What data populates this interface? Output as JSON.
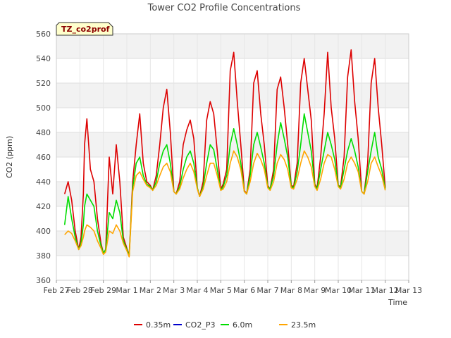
{
  "chart_data": {
    "type": "line",
    "title": "Tower CO2 Profile Concentrations",
    "xlabel": "Time",
    "ylabel": "CO2 (ppm)",
    "tag_label": "TZ_co2prof",
    "ylim": [
      360,
      560
    ],
    "yticks": [
      360,
      380,
      400,
      420,
      440,
      460,
      480,
      500,
      520,
      540,
      560
    ],
    "xlim": [
      0,
      15
    ],
    "xtick_labels": [
      "Feb 27",
      "Feb 28",
      "Feb 29",
      "Mar 1",
      "Mar 2",
      "Mar 3",
      "Mar 4",
      "Mar 5",
      "Mar 6",
      "Mar 7",
      "Mar 8",
      "Mar 9",
      "Mar 10",
      "Mar 11",
      "Mar 12",
      "Mar 13"
    ],
    "x_units": "days since Feb 27",
    "series": [
      {
        "name": "0.35m",
        "color": "#dd0000",
        "x": [
          0.35,
          0.5,
          0.65,
          0.8,
          0.95,
          1.05,
          1.15,
          1.2,
          1.3,
          1.45,
          1.6,
          1.75,
          1.9,
          2.0,
          2.1,
          2.25,
          2.4,
          2.55,
          2.7,
          2.85,
          3.0,
          3.1,
          3.25,
          3.4,
          3.55,
          3.7,
          3.85,
          4.0,
          4.1,
          4.25,
          4.4,
          4.55,
          4.7,
          4.85,
          5.0,
          5.1,
          5.25,
          5.4,
          5.55,
          5.7,
          5.85,
          6.0,
          6.1,
          6.25,
          6.4,
          6.55,
          6.7,
          6.85,
          7.0,
          7.1,
          7.25,
          7.4,
          7.55,
          7.7,
          7.85,
          8.0,
          8.1,
          8.25,
          8.4,
          8.55,
          8.7,
          8.85,
          9.0,
          9.1,
          9.25,
          9.4,
          9.55,
          9.7,
          9.85,
          10.0,
          10.1,
          10.25,
          10.4,
          10.55,
          10.7,
          10.85,
          11.0,
          11.1,
          11.25,
          11.4,
          11.55,
          11.7,
          11.85,
          12.0,
          12.1,
          12.25,
          12.4,
          12.55,
          12.7,
          12.85,
          13.0,
          13.1,
          13.25,
          13.4,
          13.55,
          13.7,
          13.85,
          14.0
        ],
        "y": [
          430,
          440,
          425,
          400,
          385,
          395,
          430,
          470,
          491,
          450,
          440,
          410,
          390,
          382,
          385,
          460,
          430,
          470,
          440,
          395,
          386,
          380,
          440,
          470,
          495,
          455,
          440,
          437,
          433,
          445,
          470,
          500,
          515,
          480,
          432,
          430,
          440,
          470,
          482,
          490,
          475,
          435,
          428,
          440,
          490,
          505,
          495,
          465,
          434,
          438,
          450,
          530,
          545,
          505,
          470,
          433,
          430,
          450,
          520,
          530,
          495,
          470,
          437,
          434,
          450,
          515,
          525,
          500,
          470,
          437,
          436,
          455,
          520,
          540,
          515,
          490,
          438,
          435,
          460,
          495,
          545,
          500,
          475,
          437,
          436,
          460,
          525,
          547,
          505,
          475,
          432,
          430,
          455,
          520,
          540,
          500,
          470,
          435
        ]
      },
      {
        "name": "CO2_P3",
        "color": "#0000cc",
        "x": [],
        "y": []
      },
      {
        "name": "6.0m",
        "color": "#00dd00",
        "x": [
          0.35,
          0.5,
          0.65,
          0.8,
          0.95,
          1.05,
          1.15,
          1.2,
          1.3,
          1.45,
          1.6,
          1.75,
          1.9,
          2.0,
          2.1,
          2.25,
          2.4,
          2.55,
          2.7,
          2.85,
          3.0,
          3.1,
          3.25,
          3.4,
          3.55,
          3.7,
          3.85,
          4.0,
          4.1,
          4.25,
          4.4,
          4.55,
          4.7,
          4.85,
          5.0,
          5.1,
          5.25,
          5.4,
          5.55,
          5.7,
          5.85,
          6.0,
          6.1,
          6.25,
          6.4,
          6.55,
          6.7,
          6.85,
          7.0,
          7.1,
          7.25,
          7.4,
          7.55,
          7.7,
          7.85,
          8.0,
          8.1,
          8.25,
          8.4,
          8.55,
          8.7,
          8.85,
          9.0,
          9.1,
          9.25,
          9.4,
          9.55,
          9.7,
          9.85,
          10.0,
          10.1,
          10.25,
          10.4,
          10.55,
          10.7,
          10.85,
          11.0,
          11.1,
          11.25,
          11.4,
          11.55,
          11.7,
          11.85,
          12.0,
          12.1,
          12.25,
          12.4,
          12.55,
          12.7,
          12.85,
          13.0,
          13.1,
          13.25,
          13.4,
          13.55,
          13.7,
          13.85,
          14.0
        ],
        "y": [
          405,
          428,
          410,
          395,
          385,
          390,
          405,
          420,
          430,
          425,
          420,
          400,
          388,
          382,
          385,
          415,
          410,
          425,
          415,
          392,
          385,
          380,
          435,
          455,
          460,
          445,
          438,
          436,
          433,
          440,
          455,
          465,
          470,
          455,
          432,
          430,
          436,
          450,
          460,
          465,
          455,
          435,
          428,
          436,
          455,
          470,
          466,
          450,
          433,
          436,
          445,
          470,
          483,
          470,
          455,
          432,
          430,
          445,
          470,
          480,
          468,
          455,
          436,
          434,
          445,
          470,
          488,
          475,
          460,
          436,
          435,
          448,
          470,
          495,
          480,
          465,
          437,
          434,
          450,
          465,
          480,
          470,
          458,
          437,
          435,
          450,
          465,
          475,
          465,
          452,
          432,
          430,
          448,
          465,
          480,
          460,
          450,
          434
        ]
      },
      {
        "name": "23.5m",
        "color": "#ffa500",
        "x": [
          0.35,
          0.5,
          0.65,
          0.8,
          0.95,
          1.05,
          1.15,
          1.2,
          1.3,
          1.45,
          1.6,
          1.75,
          1.9,
          2.0,
          2.1,
          2.25,
          2.4,
          2.55,
          2.7,
          2.85,
          3.0,
          3.1,
          3.25,
          3.4,
          3.55,
          3.7,
          3.85,
          4.0,
          4.1,
          4.25,
          4.4,
          4.55,
          4.7,
          4.85,
          5.0,
          5.1,
          5.25,
          5.4,
          5.55,
          5.7,
          5.85,
          6.0,
          6.1,
          6.25,
          6.4,
          6.55,
          6.7,
          6.85,
          7.0,
          7.1,
          7.25,
          7.4,
          7.55,
          7.7,
          7.85,
          8.0,
          8.1,
          8.25,
          8.4,
          8.55,
          8.7,
          8.85,
          9.0,
          9.1,
          9.25,
          9.4,
          9.55,
          9.7,
          9.85,
          10.0,
          10.1,
          10.25,
          10.4,
          10.55,
          10.7,
          10.85,
          11.0,
          11.1,
          11.25,
          11.4,
          11.55,
          11.7,
          11.85,
          12.0,
          12.1,
          12.25,
          12.4,
          12.55,
          12.7,
          12.85,
          13.0,
          13.1,
          13.25,
          13.4,
          13.55,
          13.7,
          13.85,
          14.0
        ],
        "y": [
          397,
          400,
          398,
          392,
          385,
          388,
          395,
          400,
          405,
          403,
          400,
          392,
          386,
          381,
          383,
          400,
          398,
          405,
          400,
          390,
          384,
          379,
          432,
          445,
          448,
          442,
          437,
          435,
          433,
          437,
          445,
          452,
          455,
          448,
          432,
          430,
          434,
          443,
          450,
          455,
          448,
          434,
          428,
          434,
          445,
          455,
          455,
          445,
          433,
          434,
          440,
          455,
          465,
          460,
          450,
          432,
          430,
          440,
          455,
          463,
          458,
          450,
          435,
          433,
          440,
          455,
          462,
          458,
          450,
          435,
          434,
          442,
          455,
          465,
          460,
          452,
          436,
          433,
          442,
          455,
          462,
          460,
          450,
          436,
          434,
          442,
          455,
          460,
          455,
          448,
          432,
          430,
          440,
          455,
          460,
          452,
          445,
          433
        ]
      }
    ],
    "legend_position": "bottom-center",
    "grid": true
  }
}
